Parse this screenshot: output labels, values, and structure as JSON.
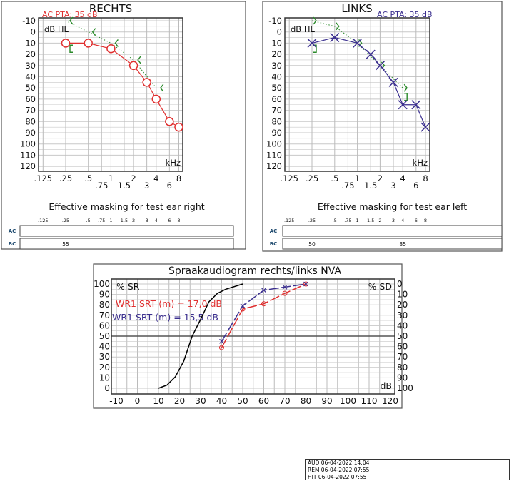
{
  "chart_data": [
    {
      "type": "line",
      "title": "RECHTS",
      "pta": "AC PTA: 35 dB",
      "ylabel": "dB HL",
      "xlabel": "kHz",
      "ylim": [
        -10,
        120
      ],
      "yticks": [
        -10,
        0,
        10,
        20,
        30,
        40,
        50,
        60,
        70,
        80,
        90,
        100,
        110,
        120
      ],
      "xticks": [
        ".125",
        ".25",
        ".5",
        ".75",
        "1",
        "1.5",
        "2",
        "3",
        "4",
        "6",
        "8"
      ],
      "xtick_values": [
        0.125,
        0.25,
        0.5,
        0.75,
        1,
        1.5,
        2,
        3,
        4,
        6,
        8
      ],
      "ac_color": "#e03030",
      "bc_color": "#2a8a2a",
      "ac_marker": "circle",
      "ac": {
        "x": [
          0.25,
          0.5,
          1,
          2,
          3,
          4,
          6,
          8
        ],
        "y": [
          10,
          10,
          15,
          30,
          45,
          60,
          80,
          85
        ]
      },
      "bc": {
        "x": [
          0.25,
          0.25,
          0.5,
          1,
          2,
          4
        ],
        "y": [
          -10,
          15,
          0,
          10,
          25,
          50
        ],
        "marker": [
          "<",
          "[",
          "<",
          "<",
          "<",
          "<"
        ]
      },
      "masking": {
        "title": "Effective masking for test ear right",
        "rows": [
          {
            "label": "AC",
            "values": []
          },
          {
            "label": "BC",
            "values": [
              {
                "freq": 0.25,
                "text": "55"
              }
            ]
          }
        ]
      }
    },
    {
      "type": "line",
      "title": "LINKS",
      "pta": "AC PTA: 35 dB",
      "ylabel": "dB HL",
      "xlabel": "kHz",
      "ylim": [
        -10,
        120
      ],
      "yticks": [
        -10,
        0,
        10,
        20,
        30,
        40,
        50,
        60,
        70,
        80,
        90,
        100,
        110,
        120
      ],
      "xticks": [
        ".125",
        ".25",
        ".5",
        ".75",
        "1",
        "1.5",
        "2",
        "3",
        "4",
        "6",
        "8"
      ],
      "xtick_values": [
        0.125,
        0.25,
        0.5,
        0.75,
        1,
        1.5,
        2,
        3,
        4,
        6,
        8
      ],
      "ac_color": "#3b2f8f",
      "bc_color": "#2a8a2a",
      "ac_marker": "x",
      "ac": {
        "x": [
          0.25,
          0.5,
          1,
          1.5,
          2,
          3,
          4,
          6,
          8
        ],
        "y": [
          10,
          5,
          10,
          20,
          30,
          45,
          65,
          65,
          85
        ]
      },
      "bc": {
        "x": [
          0.25,
          0.25,
          0.5,
          1,
          2,
          4,
          4
        ],
        "y": [
          -10,
          15,
          -5,
          10,
          30,
          50,
          58
        ],
        "marker": [
          ">",
          "]",
          ">",
          ">",
          ">",
          ">",
          "]"
        ]
      },
      "masking": {
        "title": "Effective masking for test ear left",
        "rows": [
          {
            "label": "AC",
            "values": []
          },
          {
            "label": "BC",
            "values": [
              {
                "freq": 0.25,
                "text": "50"
              },
              {
                "freq": 4,
                "text": "85"
              }
            ]
          }
        ]
      }
    },
    {
      "type": "line",
      "title": "Spraakaudiogram rechts/links NVA",
      "ylabel": "% SR",
      "ylabel_right": "% SD",
      "xlabel": "dB",
      "xlim": [
        -10,
        120
      ],
      "ylim": [
        0,
        100
      ],
      "xticks": [
        -10,
        0,
        10,
        20,
        30,
        40,
        50,
        60,
        70,
        80,
        90,
        100,
        110,
        120
      ],
      "yticks": [
        0,
        10,
        20,
        30,
        40,
        50,
        60,
        70,
        80,
        90,
        100
      ],
      "yticks_right": [
        100,
        90,
        80,
        70,
        60,
        50,
        40,
        30,
        20,
        10,
        0
      ],
      "annotations": [
        {
          "text": "WR1 SRT (m) = 17,0 dB",
          "color": "#e03030"
        },
        {
          "text": "WR1 SRT (m) = 15,5 dB",
          "color": "#3b2f8f"
        }
      ],
      "series": [
        {
          "color": "#000000",
          "x": [
            10,
            14,
            18,
            22,
            26,
            30,
            34,
            38,
            42,
            50
          ],
          "y": [
            0,
            3,
            11,
            26,
            50,
            66,
            83,
            91,
            95,
            100
          ]
        },
        {
          "color": "#e03030",
          "marker": "circle",
          "x": [
            40,
            50,
            60,
            70,
            80
          ],
          "y": [
            39,
            76,
            81,
            91,
            100
          ]
        },
        {
          "color": "#3b2f8f",
          "marker": "x",
          "x": [
            40,
            50,
            60,
            70,
            80
          ],
          "y": [
            45,
            79,
            94,
            97,
            100
          ]
        }
      ]
    }
  ],
  "timestamps": [
    "AUD 06-04-2022 14:04",
    "REM 06-04-2022 07:55",
    "HIT 06-04-2022 07:55"
  ]
}
